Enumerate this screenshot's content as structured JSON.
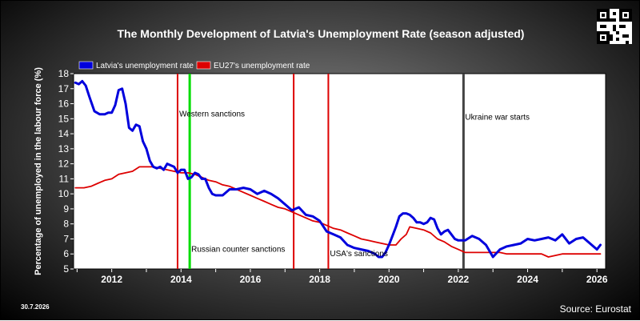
{
  "title": "The Monthly Development of Latvia's Unemployment Rate (season adjusted)",
  "footer": {
    "date": "30.7.2026",
    "source": "Source: Eurostat"
  },
  "colors": {
    "latvia": "#0000dd",
    "eu27": "#dd0000",
    "sanction_line": "#dd0000",
    "green_line": "#00dd00",
    "war_line": "#444444"
  },
  "chart_data": {
    "type": "line",
    "ylabel": "Percentage of unemployed in the labour force (%)",
    "xlabel": "",
    "xlim": [
      2010.9,
      2026.25
    ],
    "ylim": [
      5,
      18
    ],
    "yticks": [
      5,
      6,
      7,
      8,
      9,
      10,
      11,
      12,
      13,
      14,
      15,
      16,
      17,
      18
    ],
    "ytick_labels": [
      "5",
      "6",
      "7",
      "8",
      "9",
      "10",
      "11",
      "12",
      "13",
      "14",
      "15",
      "16",
      "17",
      "18"
    ],
    "xticks": [
      2012,
      2014,
      2016,
      2018,
      2020,
      2022,
      2024,
      2026
    ],
    "xtick_labels": [
      "2012",
      "2014",
      "2016",
      "2018",
      "2020",
      "2022",
      "2024",
      "2026"
    ],
    "grid": false,
    "legend": "top-left",
    "series": [
      {
        "name": "Latvia's unemployment rate",
        "x": [
          2010.95,
          2011.05,
          2011.15,
          2011.25,
          2011.35,
          2011.5,
          2011.65,
          2011.8,
          2011.9,
          2012.0,
          2012.1,
          2012.2,
          2012.3,
          2012.4,
          2012.5,
          2012.6,
          2012.7,
          2012.8,
          2012.9,
          2013.0,
          2013.1,
          2013.2,
          2013.3,
          2013.4,
          2013.5,
          2013.6,
          2013.7,
          2013.8,
          2013.9,
          2014.0,
          2014.1,
          2014.2,
          2014.3,
          2014.4,
          2014.5,
          2014.6,
          2014.7,
          2014.8,
          2014.9,
          2015.0,
          2015.2,
          2015.4,
          2015.6,
          2015.8,
          2016.0,
          2016.2,
          2016.4,
          2016.6,
          2016.8,
          2017.0,
          2017.2,
          2017.4,
          2017.6,
          2017.8,
          2018.0,
          2018.2,
          2018.4,
          2018.6,
          2018.8,
          2019.0,
          2019.2,
          2019.4,
          2019.6,
          2019.7,
          2019.8,
          2019.9,
          2020.0,
          2020.1,
          2020.2,
          2020.3,
          2020.4,
          2020.5,
          2020.6,
          2020.7,
          2020.8,
          2020.9,
          2021.0,
          2021.1,
          2021.2,
          2021.3,
          2021.4,
          2021.5,
          2021.6,
          2021.7,
          2021.8,
          2021.9,
          2022.0,
          2022.2,
          2022.4,
          2022.6,
          2022.8,
          2023.0,
          2023.2,
          2023.4,
          2023.6,
          2023.8,
          2024.0,
          2024.2,
          2024.4,
          2024.6,
          2024.8,
          2025.0,
          2025.2,
          2025.4,
          2025.6,
          2025.8,
          2026.0,
          2026.1
        ],
        "y": [
          17.4,
          17.3,
          17.5,
          17.2,
          16.5,
          15.5,
          15.3,
          15.3,
          15.4,
          15.4,
          15.9,
          16.9,
          17.0,
          16.0,
          14.4,
          14.2,
          14.6,
          14.5,
          13.5,
          13.0,
          12.2,
          11.8,
          11.7,
          11.8,
          11.6,
          12.0,
          11.9,
          11.8,
          11.4,
          11.6,
          11.6,
          11.0,
          11.1,
          11.4,
          11.3,
          11.0,
          11.0,
          10.4,
          10.0,
          9.9,
          9.9,
          10.3,
          10.3,
          10.4,
          10.3,
          10.0,
          10.2,
          10.0,
          9.7,
          9.3,
          8.9,
          9.1,
          8.6,
          8.5,
          8.2,
          7.5,
          7.3,
          7.1,
          6.6,
          6.4,
          6.3,
          6.2,
          6.0,
          5.8,
          5.8,
          6.1,
          6.6,
          7.2,
          7.8,
          8.5,
          8.7,
          8.7,
          8.6,
          8.4,
          8.1,
          8.1,
          8.0,
          8.1,
          8.4,
          8.3,
          7.7,
          7.3,
          7.5,
          7.6,
          7.3,
          7.0,
          6.9,
          6.9,
          7.2,
          7.0,
          6.6,
          5.8,
          6.3,
          6.5,
          6.6,
          6.7,
          7.0,
          6.9,
          7.0,
          7.1,
          6.9,
          7.3,
          6.7,
          7.0,
          7.1,
          6.7,
          6.3,
          6.6
        ]
      },
      {
        "name": "EU27's unemployment rate",
        "x": [
          2010.95,
          2011.2,
          2011.4,
          2011.6,
          2011.8,
          2012.0,
          2012.2,
          2012.4,
          2012.6,
          2012.8,
          2013.0,
          2013.2,
          2013.4,
          2013.6,
          2013.8,
          2014.0,
          2014.2,
          2014.4,
          2014.6,
          2014.8,
          2015.0,
          2015.2,
          2015.4,
          2015.6,
          2015.8,
          2016.0,
          2016.2,
          2016.4,
          2016.6,
          2016.8,
          2017.0,
          2017.2,
          2017.4,
          2017.6,
          2017.8,
          2018.0,
          2018.2,
          2018.4,
          2018.6,
          2018.8,
          2019.0,
          2019.2,
          2019.4,
          2019.6,
          2019.8,
          2020.0,
          2020.1,
          2020.2,
          2020.35,
          2020.5,
          2020.6,
          2020.8,
          2021.0,
          2021.2,
          2021.4,
          2021.6,
          2021.8,
          2022.0,
          2022.2,
          2022.4,
          2022.6,
          2022.8,
          2023.0,
          2023.2,
          2023.4,
          2023.6,
          2023.8,
          2024.0,
          2024.2,
          2024.4,
          2024.6,
          2024.8,
          2025.0,
          2025.2,
          2025.4,
          2025.6,
          2025.8,
          2026.0,
          2026.1
        ],
        "y": [
          10.4,
          10.4,
          10.5,
          10.7,
          10.9,
          11.0,
          11.3,
          11.4,
          11.5,
          11.8,
          11.8,
          11.8,
          11.7,
          11.6,
          11.5,
          11.4,
          11.4,
          11.3,
          11.1,
          10.9,
          10.8,
          10.6,
          10.5,
          10.3,
          10.1,
          9.9,
          9.7,
          9.5,
          9.3,
          9.1,
          9.0,
          8.8,
          8.6,
          8.4,
          8.2,
          8.1,
          7.9,
          7.7,
          7.6,
          7.4,
          7.2,
          7.0,
          6.9,
          6.8,
          6.7,
          6.6,
          6.6,
          6.6,
          7.0,
          7.3,
          7.8,
          7.7,
          7.6,
          7.4,
          7.0,
          6.8,
          6.5,
          6.3,
          6.1,
          6.1,
          6.1,
          6.1,
          6.1,
          6.1,
          6.0,
          6.0,
          6.0,
          6.0,
          6.0,
          6.0,
          5.8,
          5.9,
          6.0,
          6.0,
          6.0,
          6.0,
          6.0,
          6.0,
          6.0
        ]
      }
    ],
    "events": [
      {
        "x": 2013.9,
        "color": "red",
        "label": ""
      },
      {
        "x": 2014.25,
        "color": "green",
        "label": ""
      },
      {
        "x": 2017.25,
        "color": "red",
        "label": ""
      },
      {
        "x": 2018.25,
        "color": "red",
        "label": ""
      },
      {
        "x": 2022.15,
        "color": "gray",
        "label": ""
      }
    ],
    "annotations": [
      {
        "text": "Western sanctions",
        "x": 2013.9,
        "y": 15.3
      },
      {
        "text": "Russian counter sanctions",
        "x": 2014.25,
        "y": 6.3
      },
      {
        "text": "USA's sanctions",
        "x": 2018.25,
        "y": 6.0
      },
      {
        "text": "Ukraine war starts",
        "x": 2022.15,
        "y": 15.1
      }
    ]
  }
}
